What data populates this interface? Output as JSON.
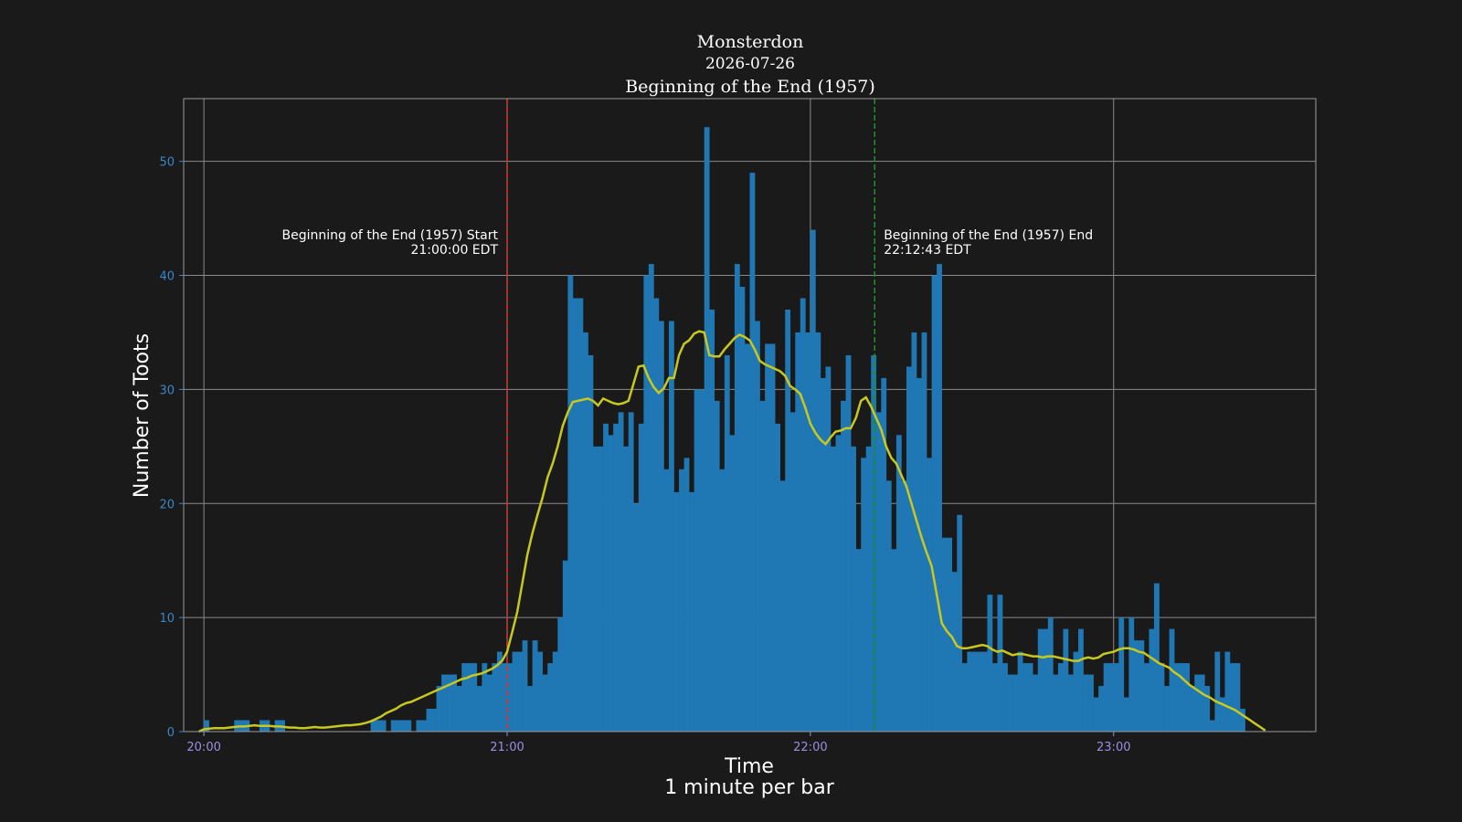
{
  "chart_data": {
    "type": "bar",
    "title": "Monsterdon",
    "subtitle": "2026-07-26",
    "subtitle2": "Beginning of the End (1957)",
    "xlabel": "Time",
    "xlabel2": "1 minute per bar",
    "ylabel": "Number of Toots",
    "x_start": "19:56",
    "x_end": "23:40",
    "ylim": [
      0,
      55.5
    ],
    "yticks": [
      0,
      10,
      20,
      30,
      40,
      50
    ],
    "xticks": [
      {
        "label": "20:00",
        "minute": 1200
      },
      {
        "label": "21:00",
        "minute": 1260
      },
      {
        "label": "22:00",
        "minute": 1320
      },
      {
        "label": "23:00",
        "minute": 1380
      }
    ],
    "grid": true,
    "bar_color": "#1f77b4",
    "line_color": "#c8c81e",
    "bar_start_minute": 1200,
    "bars": [
      1,
      0,
      0,
      0,
      0,
      0,
      1,
      1,
      1,
      0,
      0,
      1,
      1,
      0,
      1,
      1,
      0,
      0,
      0,
      0,
      0,
      0,
      0,
      0,
      0,
      0,
      0,
      0,
      0,
      0,
      0,
      0,
      0,
      1,
      1,
      1,
      0,
      1,
      1,
      1,
      1,
      0,
      1,
      1,
      2,
      2,
      4,
      5,
      5,
      5,
      4,
      6,
      6,
      6,
      4,
      6,
      5,
      6,
      7,
      6,
      6,
      7,
      7,
      8,
      4,
      8,
      7,
      5,
      6,
      7,
      10,
      15,
      40,
      38,
      38,
      35,
      33,
      25,
      25,
      27,
      26,
      27,
      28,
      25,
      28,
      20,
      27,
      40,
      41,
      38,
      36,
      23,
      36,
      21,
      23,
      24,
      21,
      30,
      30,
      53,
      37,
      29,
      23,
      33,
      26,
      41,
      39,
      34,
      49,
      36,
      29,
      34,
      34,
      27,
      22,
      37,
      28,
      35,
      38,
      35,
      44,
      35,
      31,
      32,
      25,
      26,
      29,
      33,
      25,
      16,
      24,
      25,
      33,
      28,
      31,
      22,
      16,
      26,
      22,
      32,
      35,
      31,
      35,
      24,
      40,
      41,
      17,
      17,
      14,
      19,
      6,
      7,
      7,
      7,
      7,
      12,
      6,
      12,
      6,
      5,
      5,
      7,
      6,
      6,
      5,
      9,
      9,
      10,
      5,
      6,
      9,
      5,
      7,
      9,
      5,
      5,
      3,
      4,
      6,
      6,
      6,
      10,
      3,
      10,
      8,
      8,
      6,
      9,
      13,
      6,
      4,
      9,
      6,
      6,
      6,
      4,
      5,
      5,
      4,
      1,
      7,
      3,
      7,
      6,
      6,
      2
    ],
    "rolling_start_minute": 1199,
    "rolling": [
      0,
      0.2,
      0.25,
      0.3,
      0.3,
      0.3,
      0.35,
      0.4,
      0.45,
      0.45,
      0.5,
      0.55,
      0.5,
      0.5,
      0.5,
      0.45,
      0.45,
      0.4,
      0.35,
      0.35,
      0.3,
      0.3,
      0.35,
      0.4,
      0.35,
      0.35,
      0.4,
      0.45,
      0.5,
      0.55,
      0.55,
      0.6,
      0.65,
      0.75,
      0.9,
      1.1,
      1.3,
      1.6,
      1.8,
      2.0,
      2.3,
      2.5,
      2.6,
      2.8,
      3.0,
      3.2,
      3.4,
      3.6,
      3.8,
      4.0,
      4.2,
      4.4,
      4.6,
      4.7,
      4.9,
      5.0,
      5.1,
      5.3,
      5.5,
      5.8,
      6.2,
      7.0,
      8.7,
      10.5,
      13.0,
      15.5,
      17.4,
      19.0,
      20.5,
      22.3,
      23.5,
      25.0,
      26.8,
      28.0,
      28.9,
      29.0,
      29.1,
      29.2,
      29.0,
      28.6,
      29.2,
      29.0,
      28.8,
      28.7,
      28.8,
      29.0,
      30.5,
      32.0,
      32.1,
      31.0,
      30.2,
      29.7,
      30.1,
      31.0,
      31.0,
      33.0,
      34.0,
      34.3,
      34.9,
      35.1,
      35.0,
      33.0,
      32.9,
      32.9,
      33.5,
      34.0,
      34.5,
      34.8,
      34.6,
      34.3,
      33.5,
      32.5,
      32.2,
      32.0,
      31.8,
      31.6,
      31.2,
      30.3,
      30.0,
      29.6,
      28.4,
      27.0,
      26.2,
      25.6,
      25.2,
      25.8,
      26.3,
      26.4,
      26.6,
      26.6,
      27.5,
      29.0,
      29.3,
      28.5,
      27.5,
      26.5,
      25.0,
      24.0,
      23.5,
      22.5,
      21.5,
      20.0,
      18.5,
      17.0,
      15.7,
      14.5,
      12.0,
      9.5,
      8.8,
      8.3,
      7.5,
      7.3,
      7.3,
      7.4,
      7.5,
      7.6,
      7.5,
      7.2,
      7.0,
      7.1,
      6.9,
      6.7,
      6.8,
      6.8,
      6.7,
      6.6,
      6.6,
      6.5,
      6.6,
      6.6,
      6.5,
      6.4,
      6.3,
      6.2,
      6.2,
      6.4,
      6.5,
      6.4,
      6.5,
      6.8,
      6.9,
      7.0,
      7.2,
      7.3,
      7.3,
      7.2,
      7.0,
      6.9,
      6.6,
      6.3,
      6.0,
      5.8,
      5.6,
      5.2,
      4.9,
      4.5,
      4.1,
      3.8,
      3.5,
      3.2,
      3.0,
      2.7,
      2.5,
      2.3,
      2.1,
      1.9,
      1.6,
      1.3,
      1.0,
      0.7,
      0.4,
      0.1
    ],
    "annotations": [
      {
        "line1": "Beginning of the End (1957) Start",
        "line2": "21:00:00 EDT",
        "minute": 1260,
        "color": "#e0302a",
        "align": "right"
      },
      {
        "line1": "Beginning of the End (1957) End",
        "line2": "22:12:43 EDT",
        "minute": 1332.7167,
        "color": "#1e8c28",
        "align": "left"
      }
    ]
  }
}
